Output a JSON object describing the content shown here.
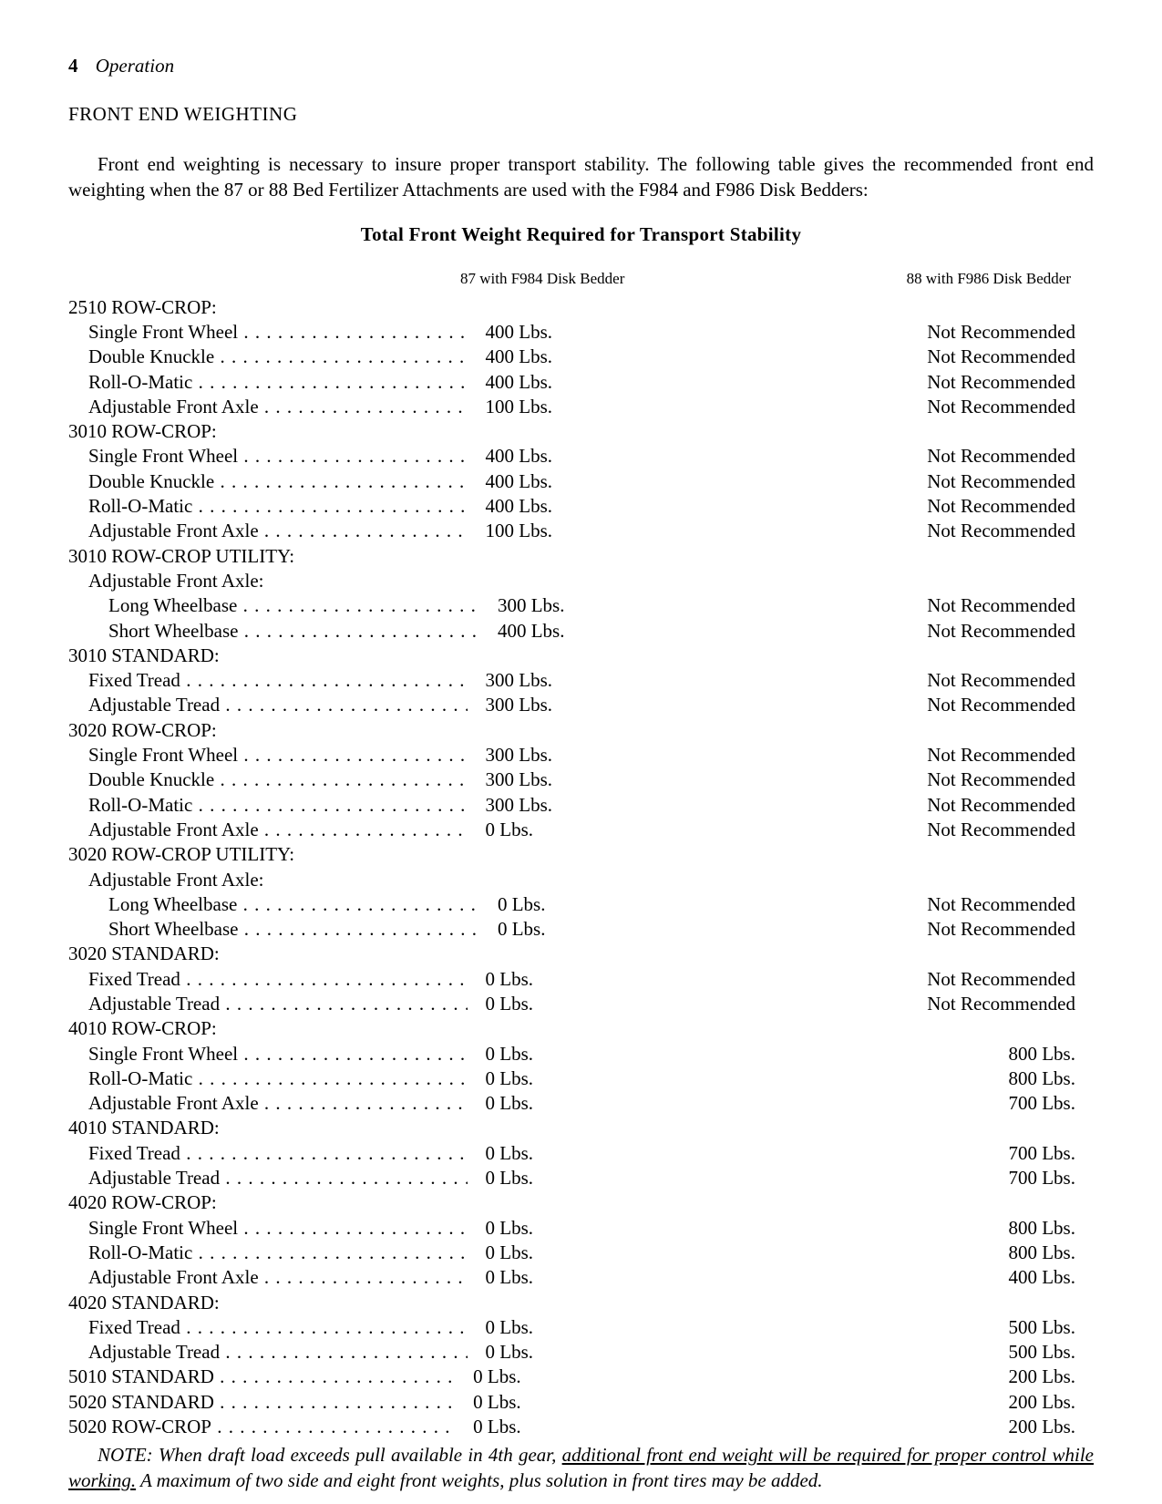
{
  "page_number": "4",
  "section_title": "Operation",
  "heading": "FRONT END WEIGHTING",
  "intro_paragraph": "Front end weighting is necessary to insure proper transport stability. The following table gives the recommended front end weighting when the 87 or 88 Bed Fertilizer Attachments are used with the F984 and F986 Disk Bedders:",
  "table_title": "Total Front Weight Required for Transport Stability",
  "column_headers": {
    "col87": "87 with F984 Disk Bedder",
    "col88": "88 with F986 Disk Bedder"
  },
  "groups": [
    {
      "label": "2510 ROW-CROP:",
      "rows": [
        {
          "label": "Single Front Wheel",
          "c87": "400 Lbs.",
          "c88": "Not Recommended"
        },
        {
          "label": "Double Knuckle",
          "c87": "400 Lbs.",
          "c88": "Not Recommended"
        },
        {
          "label": "Roll-O-Matic",
          "c87": "400 Lbs.",
          "c88": "Not Recommended"
        },
        {
          "label": "Adjustable Front Axle",
          "c87": "100 Lbs.",
          "c88": "Not Recommended"
        }
      ]
    },
    {
      "label": "3010 ROW-CROP:",
      "rows": [
        {
          "label": "Single Front Wheel",
          "c87": "400 Lbs.",
          "c88": "Not Recommended"
        },
        {
          "label": "Double Knuckle",
          "c87": "400 Lbs.",
          "c88": "Not Recommended"
        },
        {
          "label": "Roll-O-Matic",
          "c87": "400 Lbs.",
          "c88": "Not Recommended"
        },
        {
          "label": "Adjustable Front Axle",
          "c87": "100 Lbs.",
          "c88": "Not Recommended"
        }
      ]
    },
    {
      "label": "3010 ROW-CROP UTILITY:",
      "sublabel": "Adjustable Front Axle:",
      "rows": [
        {
          "label": "Long Wheelbase",
          "c87": "300 Lbs.",
          "c88": "Not Recommended",
          "indent": 2
        },
        {
          "label": "Short Wheelbase",
          "c87": "400 Lbs.",
          "c88": "Not Recommended",
          "indent": 2
        }
      ]
    },
    {
      "label": "3010 STANDARD:",
      "rows": [
        {
          "label": "Fixed Tread",
          "c87": "300 Lbs.",
          "c88": "Not Recommended"
        },
        {
          "label": "Adjustable Tread",
          "c87": "300 Lbs.",
          "c88": "Not Recommended"
        }
      ]
    },
    {
      "label": "3020 ROW-CROP:",
      "rows": [
        {
          "label": "Single Front Wheel",
          "c87": "300 Lbs.",
          "c88": "Not Recommended"
        },
        {
          "label": "Double Knuckle",
          "c87": "300 Lbs.",
          "c88": "Not Recommended"
        },
        {
          "label": "Roll-O-Matic",
          "c87": "300 Lbs.",
          "c88": "Not Recommended"
        },
        {
          "label": "Adjustable Front Axle",
          "c87": "0 Lbs.",
          "c88": "Not Recommended"
        }
      ]
    },
    {
      "label": "3020 ROW-CROP UTILITY:",
      "sublabel": "Adjustable Front Axle:",
      "rows": [
        {
          "label": "Long Wheelbase",
          "c87": "0 Lbs.",
          "c88": "Not Recommended",
          "indent": 2
        },
        {
          "label": "Short Wheelbase",
          "c87": "0 Lbs.",
          "c88": "Not Recommended",
          "indent": 2
        }
      ]
    },
    {
      "label": "3020 STANDARD:",
      "rows": [
        {
          "label": "Fixed Tread",
          "c87": "0 Lbs.",
          "c88": "Not Recommended"
        },
        {
          "label": "Adjustable Tread",
          "c87": "0 Lbs.",
          "c88": "Not Recommended"
        }
      ]
    },
    {
      "label": "4010 ROW-CROP:",
      "rows": [
        {
          "label": "Single Front Wheel",
          "c87": "0 Lbs.",
          "c88": "800 Lbs."
        },
        {
          "label": "Roll-O-Matic",
          "c87": "0 Lbs.",
          "c88": "800 Lbs."
        },
        {
          "label": "Adjustable Front Axle",
          "c87": "0 Lbs.",
          "c88": "700 Lbs."
        }
      ]
    },
    {
      "label": "4010 STANDARD:",
      "rows": [
        {
          "label": "Fixed Tread",
          "c87": "0 Lbs.",
          "c88": "700 Lbs."
        },
        {
          "label": "Adjustable Tread",
          "c87": "0 Lbs.",
          "c88": "700 Lbs."
        }
      ]
    },
    {
      "label": "4020 ROW-CROP:",
      "rows": [
        {
          "label": "Single Front Wheel",
          "c87": "0 Lbs.",
          "c88": "800 Lbs."
        },
        {
          "label": "Roll-O-Matic",
          "c87": "0 Lbs.",
          "c88": "800 Lbs."
        },
        {
          "label": "Adjustable Front Axle",
          "c87": "0 Lbs.",
          "c88": "400 Lbs."
        }
      ]
    },
    {
      "label": "4020 STANDARD:",
      "rows": [
        {
          "label": "Fixed Tread",
          "c87": "0 Lbs.",
          "c88": "500 Lbs."
        },
        {
          "label": "Adjustable Tread",
          "c87": "0 Lbs.",
          "c88": "500 Lbs."
        }
      ]
    },
    {
      "label": null,
      "rows": [
        {
          "label": "5010 STANDARD",
          "c87": "0 Lbs.",
          "c88": "200 Lbs.",
          "indent": 0
        },
        {
          "label": "5020 STANDARD",
          "c87": "0 Lbs.",
          "c88": "200 Lbs.",
          "indent": 0
        },
        {
          "label": "5020 ROW-CROP",
          "c87": "0 Lbs.",
          "c88": "200 Lbs.",
          "indent": 0
        }
      ]
    }
  ],
  "note_prefix": "NOTE: When draft load exceeds pull available in 4th gear, ",
  "note_underlined": "additional front end weight will be required for proper control while working.",
  "note_suffix": " A maximum of two side and eight front weights, plus solution in front tires may be added."
}
